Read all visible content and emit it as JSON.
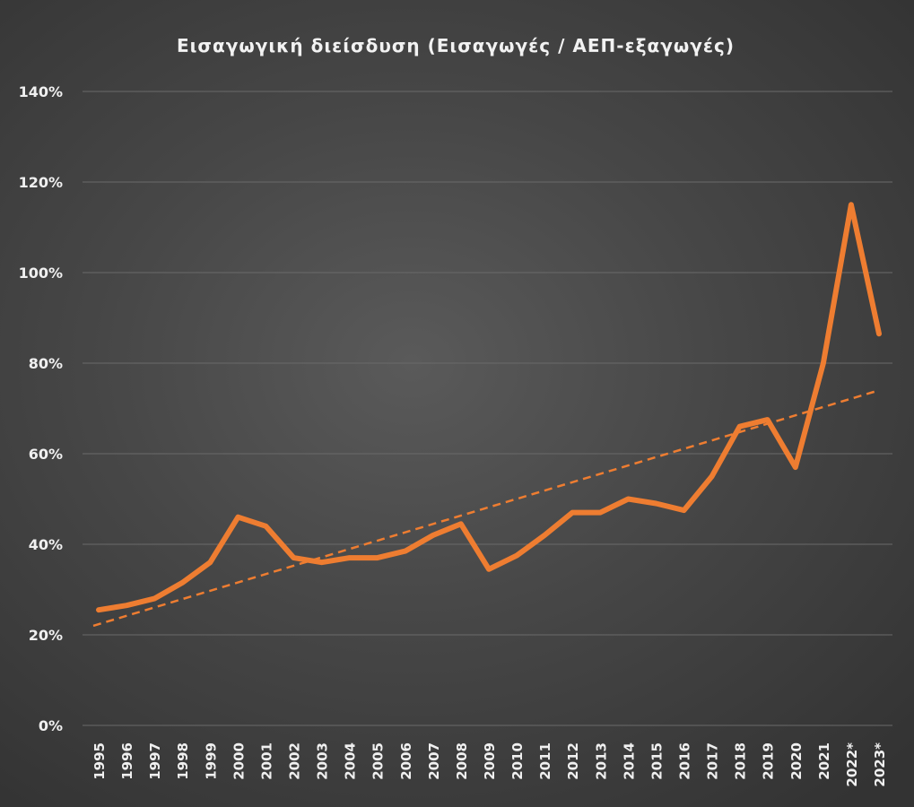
{
  "chart_data": {
    "type": "line",
    "title": "Εισαγωγική διείσδυση (Εισαγωγές / ΑΕΠ-εξαγωγές)",
    "xlabel": "",
    "ylabel": "",
    "ylim": [
      0,
      140
    ],
    "y_ticks": [
      "0%",
      "20%",
      "40%",
      "60%",
      "80%",
      "100%",
      "120%",
      "140%"
    ],
    "y_tick_values": [
      0,
      20,
      40,
      60,
      80,
      100,
      120,
      140
    ],
    "categories": [
      "1995",
      "1996",
      "1997",
      "1998",
      "1999",
      "2000",
      "2001",
      "2002",
      "2003",
      "2004",
      "2005",
      "2006",
      "2007",
      "2008",
      "2009",
      "2010",
      "2011",
      "2012",
      "2013",
      "2014",
      "2015",
      "2016",
      "2017",
      "2018",
      "2019",
      "2020",
      "2021",
      "2022*",
      "2023*"
    ],
    "series": [
      {
        "values": [
          25.5,
          26.5,
          28,
          31.5,
          36,
          46,
          44,
          37,
          36,
          37,
          37,
          38.5,
          42,
          44.5,
          34.5,
          37.5,
          42,
          47,
          47,
          50,
          49,
          47.5,
          55,
          66,
          67.5,
          57,
          80,
          115,
          86.5
        ]
      }
    ],
    "trendline": {
      "style": "dashed",
      "start": 22,
      "end": 74
    },
    "grid": true,
    "legend": "none",
    "colors": {
      "series": "#ee7d31",
      "grid": "#6a6a6a",
      "text": "#f0f0f0"
    }
  }
}
